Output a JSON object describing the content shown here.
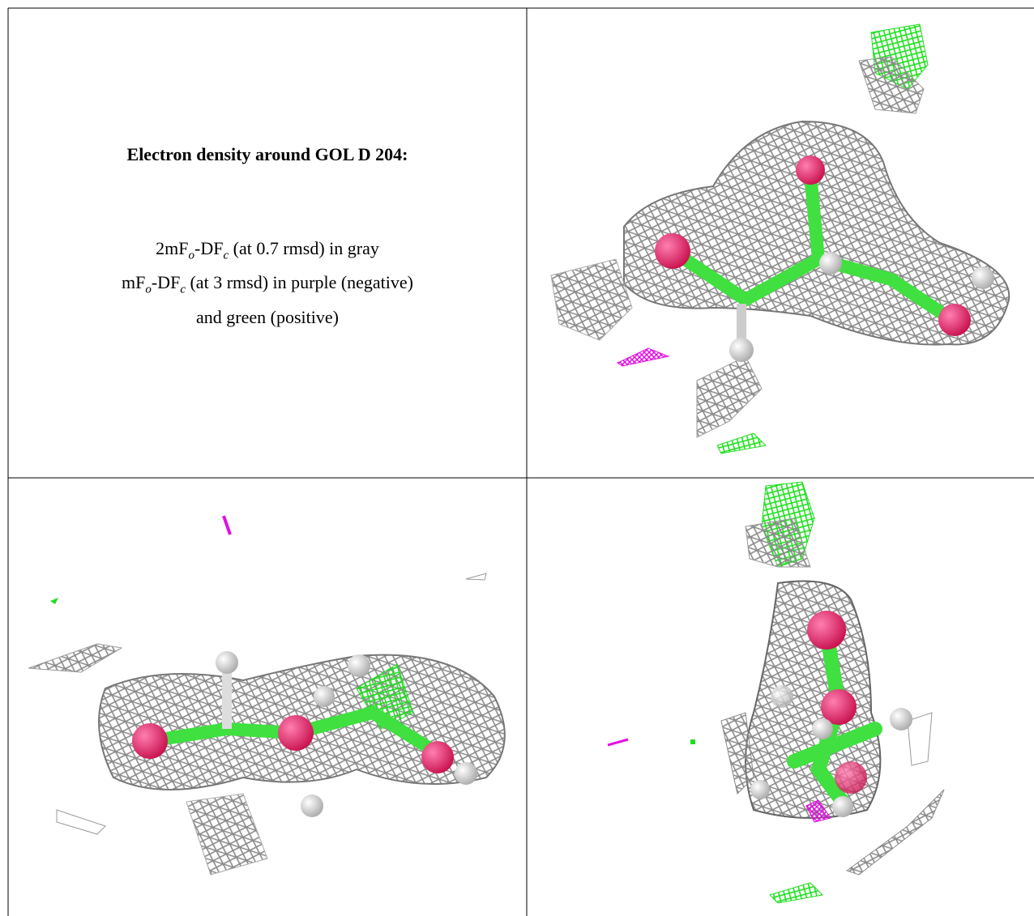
{
  "caption": {
    "title": "Electron density around GOL D 204:",
    "lines": [
      [
        "2mF",
        "o",
        "-DF",
        "c",
        " (at 0.7 rmsd) in gray"
      ],
      [
        "mF",
        "o",
        "-DF",
        "c",
        " (at 3 rmsd) in purple (negative)"
      ],
      [
        "and green (positive)"
      ]
    ]
  }
}
